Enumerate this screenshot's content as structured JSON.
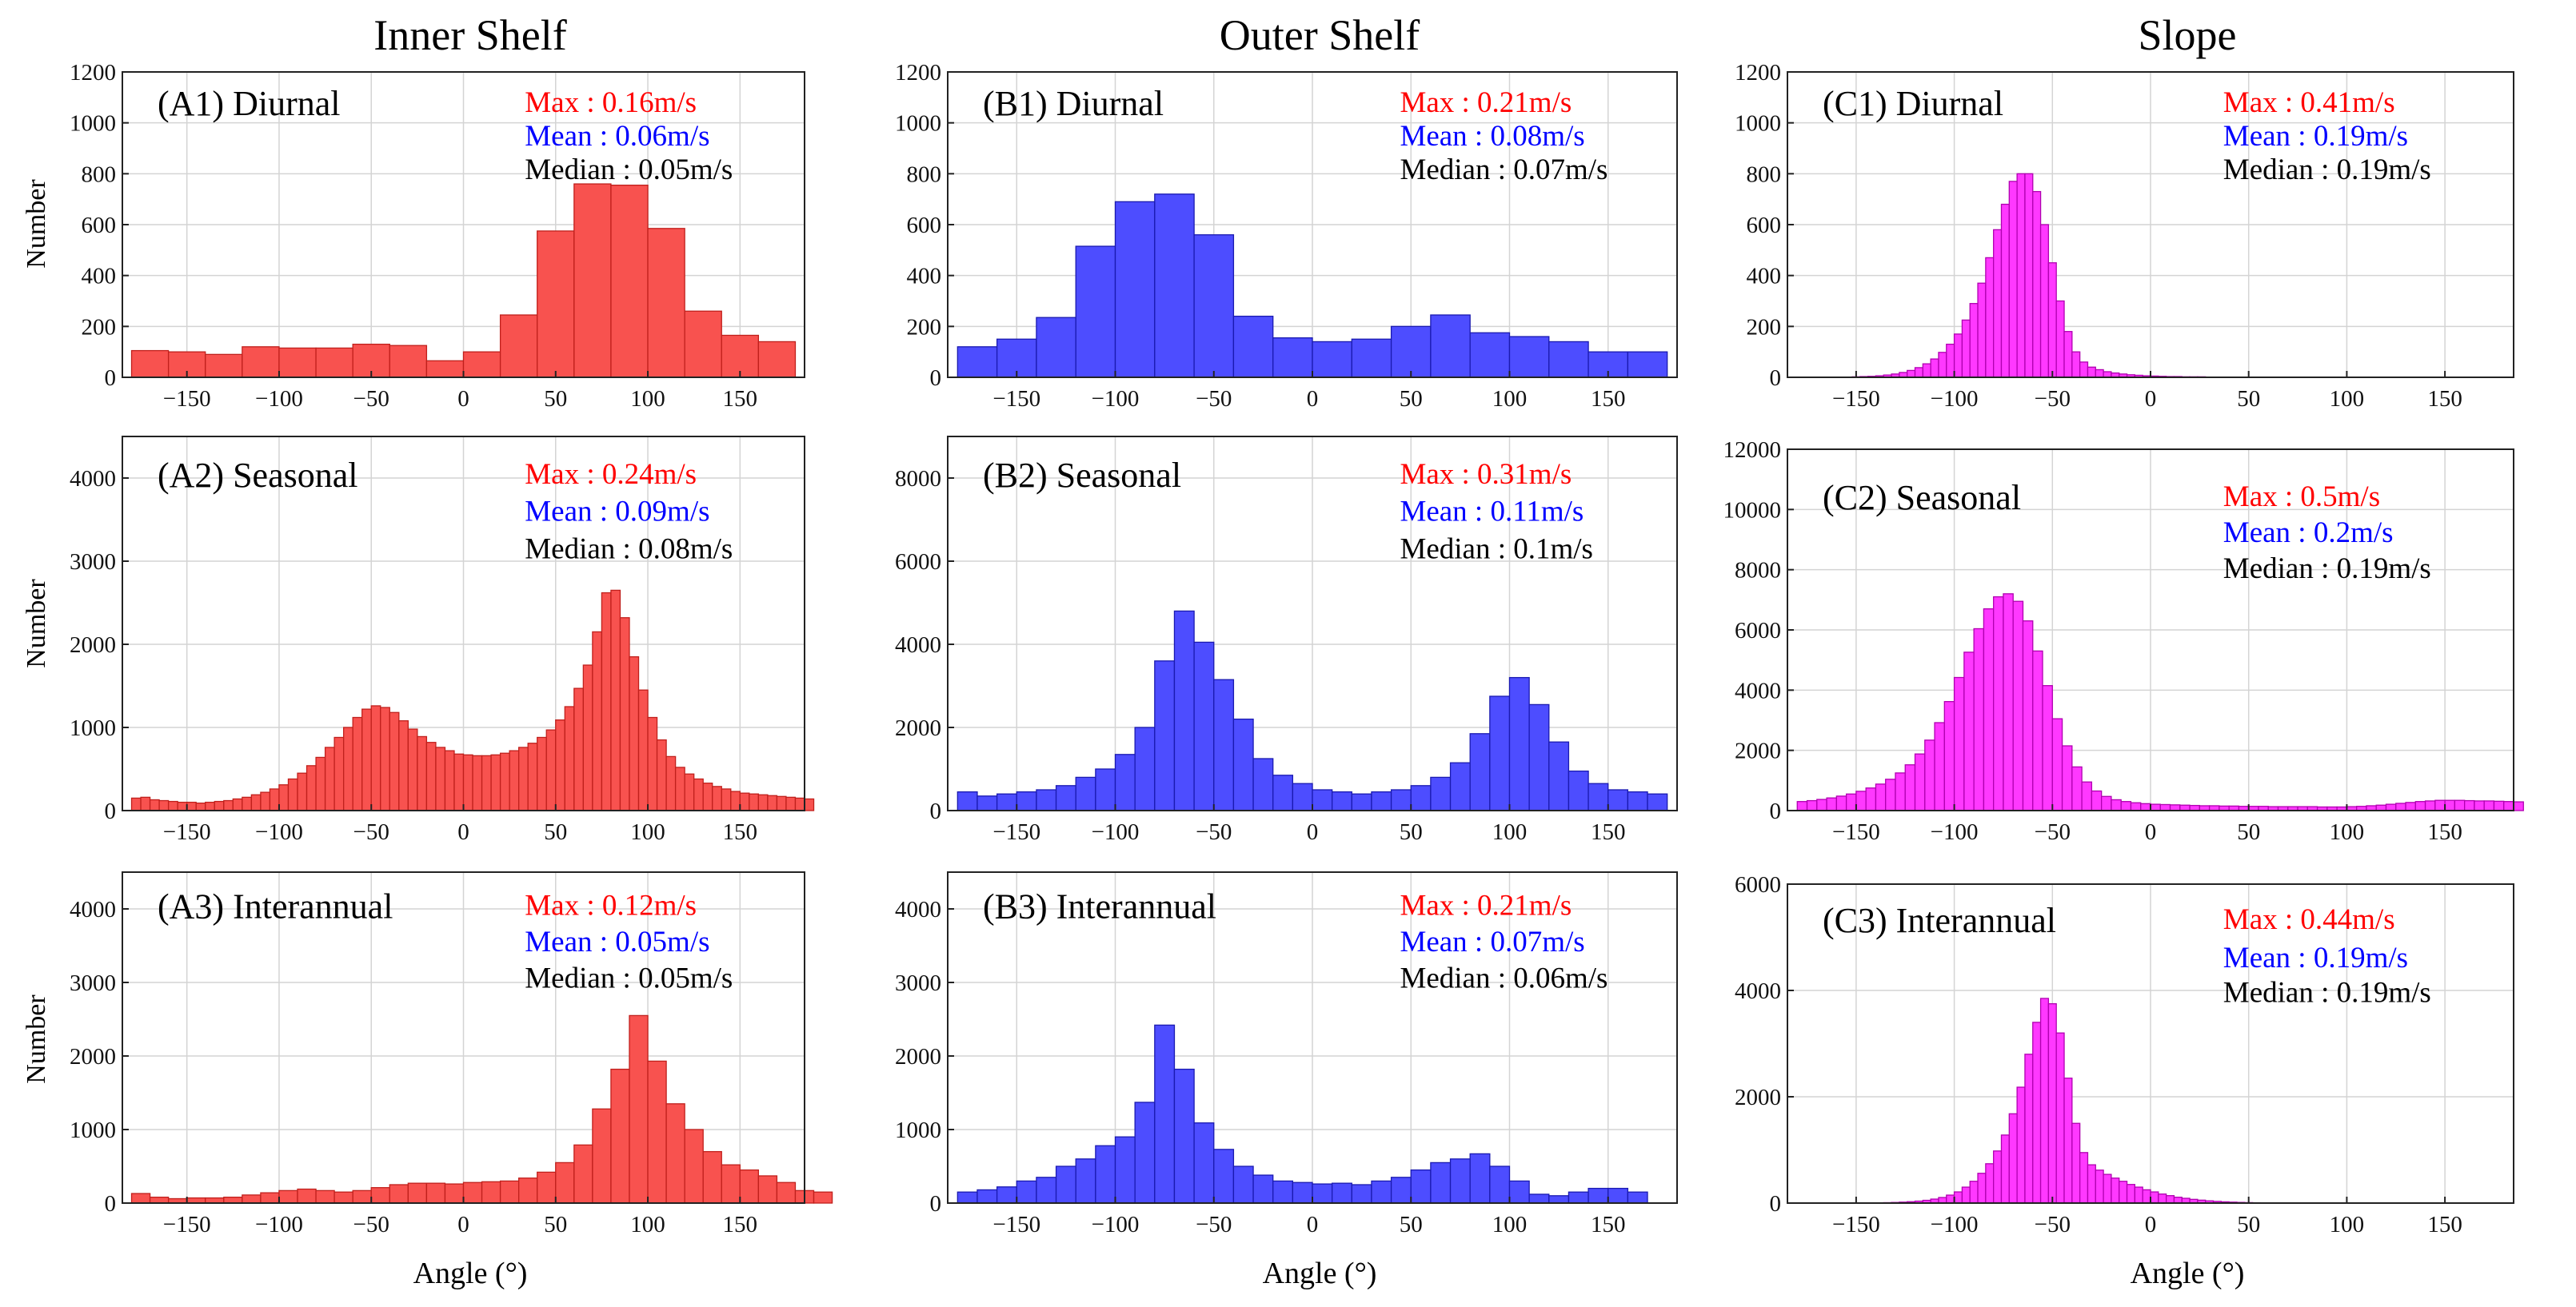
{
  "figure": {
    "column_titles": [
      "Inner Shelf",
      "Outer Shelf",
      "Slope"
    ],
    "xlabel": "Angle (°)",
    "ylabel": "Number"
  },
  "colors": {
    "red_fill": "#f8524f",
    "red_edge": "#c0201c",
    "blue_fill": "#4d4dff",
    "blue_edge": "#1a1ab0",
    "magenta_fill": "#ff38ff",
    "magenta_edge": "#b000b0",
    "max_text": "#ff0000",
    "mean_text": "#0000ff",
    "median_text": "#000000"
  },
  "chart_data": [
    {
      "id": "A1",
      "type": "bar",
      "label": "(A1)  Diurnal",
      "max": "Max : 0.16m/s",
      "mean": "Mean : 0.06m/s",
      "median": "Median : 0.05m/s",
      "xlim": [
        -185,
        185
      ],
      "ylim": [
        0,
        1200
      ],
      "yticks": [
        0,
        200,
        400,
        600,
        800,
        1000,
        1200
      ],
      "xticks": [
        -150,
        -100,
        -50,
        0,
        50,
        100,
        150
      ],
      "x_start": -180,
      "bin_width": 20,
      "values": [
        105,
        100,
        90,
        120,
        115,
        115,
        130,
        125,
        65,
        100,
        245,
        575,
        760,
        755,
        585,
        260,
        165,
        140
      ]
    },
    {
      "id": "B1",
      "type": "bar",
      "label": "(B1)  Diurnal",
      "max": "Max : 0.21m/s",
      "mean": "Mean : 0.08m/s",
      "median": "Median : 0.07m/s",
      "xlim": [
        -185,
        185
      ],
      "ylim": [
        0,
        1200
      ],
      "yticks": [
        0,
        200,
        400,
        600,
        800,
        1000,
        1200
      ],
      "xticks": [
        -150,
        -100,
        -50,
        0,
        50,
        100,
        150
      ],
      "x_start": -180,
      "bin_width": 20,
      "values": [
        120,
        150,
        235,
        515,
        690,
        720,
        560,
        240,
        155,
        140,
        150,
        200,
        245,
        175,
        160,
        140,
        100,
        100
      ]
    },
    {
      "id": "C1",
      "type": "bar",
      "label": "(C1)  Diurnal",
      "max": "Max : 0.41m/s",
      "mean": "Mean : 0.19m/s",
      "median": "Median : 0.19m/s",
      "xlim": [
        -185,
        185
      ],
      "ylim": [
        0,
        1200
      ],
      "yticks": [
        0,
        200,
        400,
        600,
        800,
        1000,
        1200
      ],
      "xticks": [
        -150,
        -100,
        -50,
        0,
        50,
        100,
        150
      ],
      "x_start": -180,
      "bin_width": 4,
      "values": [
        0,
        0,
        0,
        0,
        0,
        0,
        1,
        2,
        3,
        4,
        6,
        9,
        13,
        19,
        27,
        38,
        53,
        72,
        98,
        130,
        170,
        225,
        290,
        370,
        470,
        580,
        680,
        770,
        800,
        800,
        730,
        600,
        450,
        300,
        180,
        100,
        60,
        40,
        30,
        22,
        17,
        13,
        10,
        8,
        6,
        5,
        4,
        3,
        3,
        2,
        2,
        2,
        1,
        1,
        1,
        1,
        1,
        1,
        1,
        1,
        1,
        1,
        1,
        0,
        0,
        0,
        0,
        0,
        0,
        0,
        0,
        0,
        0,
        0,
        0,
        0,
        0,
        0,
        0,
        0,
        0,
        0,
        0,
        0,
        0,
        0,
        0,
        0,
        0,
        0
      ]
    },
    {
      "id": "A2",
      "type": "bar",
      "label": "(A2)  Seasonal",
      "max": "Max : 0.24m/s",
      "mean": "Mean : 0.09m/s",
      "median": "Median : 0.08m/s",
      "xlim": [
        -185,
        185
      ],
      "ylim": [
        0,
        4500
      ],
      "yticks": [
        0,
        1000,
        2000,
        3000,
        4000
      ],
      "xticks": [
        -150,
        -100,
        -50,
        0,
        50,
        100,
        150
      ],
      "x_start": -180,
      "bin_width": 5,
      "values": [
        150,
        160,
        130,
        120,
        110,
        100,
        100,
        90,
        100,
        110,
        120,
        140,
        160,
        190,
        220,
        260,
        310,
        380,
        450,
        540,
        640,
        760,
        880,
        1000,
        1120,
        1220,
        1260,
        1240,
        1180,
        1080,
        980,
        890,
        820,
        760,
        720,
        680,
        670,
        660,
        660,
        670,
        690,
        720,
        760,
        810,
        880,
        970,
        1090,
        1250,
        1470,
        1750,
        2150,
        2620,
        2650,
        2320,
        1850,
        1450,
        1120,
        850,
        650,
        520,
        440,
        380,
        330,
        290,
        260,
        230,
        210,
        200,
        190,
        180,
        170,
        160,
        150,
        140
      ]
    },
    {
      "id": "B2",
      "type": "bar",
      "label": "(B2)  Seasonal",
      "max": "Max : 0.31m/s",
      "mean": "Mean : 0.11m/s",
      "median": "Median : 0.1m/s",
      "xlim": [
        -185,
        185
      ],
      "ylim": [
        0,
        9000
      ],
      "yticks": [
        0,
        2000,
        4000,
        6000,
        8000
      ],
      "xticks": [
        -150,
        -100,
        -50,
        0,
        50,
        100,
        150
      ],
      "x_start": -180,
      "bin_width": 10,
      "values": [
        450,
        350,
        400,
        450,
        500,
        600,
        800,
        1000,
        1350,
        2000,
        3600,
        4800,
        4050,
        3150,
        2200,
        1250,
        850,
        650,
        500,
        450,
        400,
        450,
        500,
        600,
        800,
        1150,
        1850,
        2750,
        3200,
        2550,
        1650,
        950,
        650,
        500,
        450,
        400
      ]
    },
    {
      "id": "C2",
      "type": "bar",
      "label": "(C2)  Seasonal",
      "max": "Max : 0.5m/s",
      "mean": "Mean : 0.2m/s",
      "median": "Median : 0.19m/s",
      "xlim": [
        -185,
        185
      ],
      "ylim": [
        0,
        12000
      ],
      "yticks": [
        0,
        2000,
        4000,
        6000,
        8000,
        10000,
        12000
      ],
      "xticks": [
        -150,
        -100,
        -50,
        0,
        50,
        100,
        150
      ],
      "x_start": -180,
      "bin_width": 5,
      "values": [
        300,
        330,
        370,
        420,
        480,
        550,
        640,
        750,
        880,
        1040,
        1250,
        1520,
        1880,
        2340,
        2920,
        3620,
        4420,
        5260,
        6040,
        6700,
        7100,
        7200,
        6950,
        6300,
        5300,
        4150,
        3050,
        2150,
        1450,
        950,
        650,
        470,
        360,
        300,
        260,
        230,
        210,
        200,
        190,
        180,
        170,
        160,
        160,
        150,
        150,
        140,
        140,
        140,
        130,
        130,
        130,
        130,
        130,
        120,
        120,
        120,
        130,
        140,
        160,
        180,
        210,
        240,
        270,
        300,
        320,
        340,
        340,
        340,
        330,
        320,
        320,
        310,
        300,
        290
      ]
    },
    {
      "id": "A3",
      "type": "bar",
      "label": "(A3)  Interannual",
      "max": "Max : 0.12m/s",
      "mean": "Mean : 0.05m/s",
      "median": "Median : 0.05m/s",
      "xlim": [
        -185,
        185
      ],
      "ylim": [
        0,
        4500
      ],
      "yticks": [
        0,
        1000,
        2000,
        3000,
        4000
      ],
      "xticks": [
        -150,
        -100,
        -50,
        0,
        50,
        100,
        150
      ],
      "x_start": -180,
      "bin_width": 10,
      "values": [
        130,
        80,
        60,
        70,
        70,
        80,
        110,
        140,
        170,
        190,
        170,
        150,
        170,
        210,
        250,
        270,
        270,
        260,
        280,
        290,
        300,
        340,
        420,
        550,
        790,
        1280,
        1820,
        2550,
        1930,
        1350,
        1000,
        700,
        520,
        450,
        370,
        280,
        170,
        150
      ]
    },
    {
      "id": "B3",
      "type": "bar",
      "label": "(B3)  Interannual",
      "max": "Max : 0.21m/s",
      "mean": "Mean : 0.07m/s",
      "median": "Median : 0.06m/s",
      "xlim": [
        -185,
        185
      ],
      "ylim": [
        0,
        4500
      ],
      "yticks": [
        0,
        1000,
        2000,
        3000,
        4000
      ],
      "xticks": [
        -150,
        -100,
        -50,
        0,
        50,
        100,
        150
      ],
      "x_start": -180,
      "bin_width": 10,
      "values": [
        150,
        180,
        220,
        300,
        350,
        500,
        600,
        780,
        900,
        1370,
        2420,
        1820,
        1090,
        730,
        500,
        380,
        300,
        280,
        260,
        270,
        250,
        300,
        350,
        450,
        550,
        600,
        670,
        500,
        300,
        120,
        100,
        150,
        200,
        200,
        150
      ]
    },
    {
      "id": "C3",
      "type": "bar",
      "label": "(C3)  Interannual",
      "max": "Max : 0.44m/s",
      "mean": "Mean : 0.19m/s",
      "median": "Median : 0.19m/s",
      "xlim": [
        -185,
        185
      ],
      "ylim": [
        0,
        6000
      ],
      "yticks": [
        0,
        2000,
        4000,
        6000
      ],
      "xticks": [
        -150,
        -100,
        -50,
        0,
        50,
        100,
        150
      ],
      "x_start": -180,
      "bin_width": 4,
      "values": [
        0,
        0,
        0,
        0,
        0,
        0,
        0,
        1,
        2,
        3,
        5,
        8,
        12,
        18,
        26,
        37,
        52,
        75,
        105,
        150,
        210,
        300,
        410,
        560,
        740,
        980,
        1280,
        1680,
        2180,
        2800,
        3400,
        3850,
        3750,
        3200,
        2350,
        1500,
        950,
        720,
        620,
        540,
        470,
        410,
        350,
        300,
        250,
        210,
        170,
        140,
        110,
        90,
        70,
        55,
        42,
        32,
        24,
        18,
        13,
        9,
        6,
        4,
        2,
        1,
        0,
        0,
        0,
        0,
        0,
        0,
        0,
        0,
        0,
        0,
        0,
        0,
        0,
        0,
        0,
        0,
        0,
        0,
        0,
        0,
        0,
        0,
        0,
        0,
        0,
        0,
        0,
        0,
        0,
        0,
        0
      ]
    }
  ]
}
